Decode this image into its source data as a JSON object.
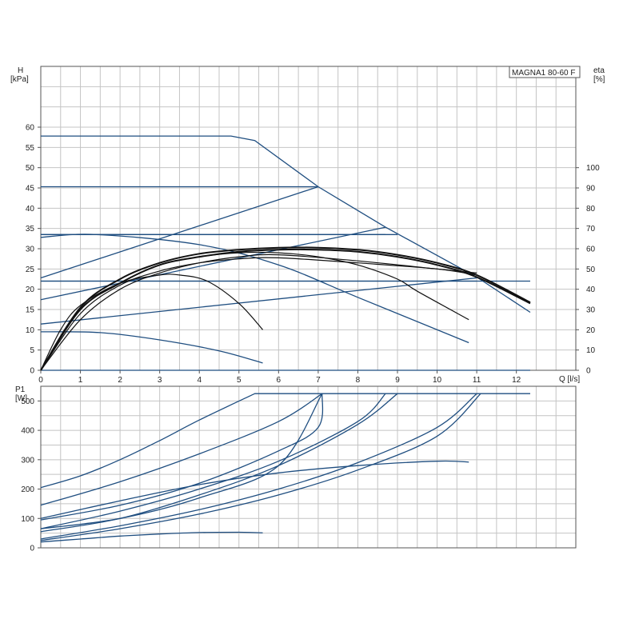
{
  "chart_data": [
    {
      "type": "line",
      "title": "MAGNA1 80-60 F",
      "xlabel": "Q [l/s]",
      "ylabel_left": "H\n[kPa]",
      "ylabel_left_lines": [
        "H",
        "[kPa]"
      ],
      "ylabel_right_lines": [
        "eta",
        "[%]"
      ],
      "xlim": [
        0,
        13.5
      ],
      "ylim": [
        0,
        75
      ],
      "y2lim": [
        0,
        150
      ],
      "grid": true,
      "legend": "top-right",
      "xticks": [
        0,
        1,
        2,
        3,
        4,
        5,
        6,
        7,
        8,
        9,
        10,
        11,
        12
      ],
      "yticks": [
        0,
        5,
        10,
        15,
        20,
        25,
        30,
        35,
        40,
        45,
        50,
        55,
        60
      ],
      "y2ticks": [
        0,
        10,
        20,
        30,
        40,
        50,
        60,
        70,
        80,
        90,
        100
      ],
      "head_series": [
        {
          "name": "max curve",
          "x": [
            0,
            4.8,
            5.4,
            7.0,
            8.7,
            11.0,
            12.35
          ],
          "y": [
            57.8,
            57.8,
            56.7,
            45.3,
            35.3,
            23.0,
            14.3
          ]
        },
        {
          "x": [
            0,
            7.0
          ],
          "y": [
            45.3,
            45.3
          ]
        },
        {
          "x": [
            0,
            8.7
          ],
          "y": [
            33.5,
            33.5
          ]
        },
        {
          "x": [
            0,
            9.0
          ],
          "y": [
            33.5,
            33.5
          ]
        },
        {
          "x": [
            0,
            11.0
          ],
          "y": [
            22.0,
            22.0
          ]
        },
        {
          "x": [
            0,
            12.35
          ],
          "y": [
            22.0,
            22.0
          ]
        },
        {
          "x": [
            0,
            7.0
          ],
          "y": [
            22.8,
            45.3
          ]
        },
        {
          "x": [
            0,
            8.7
          ],
          "y": [
            17.4,
            35.3
          ]
        },
        {
          "x": [
            0,
            11.0
          ],
          "y": [
            11.4,
            22.8
          ]
        },
        {
          "x": [
            0,
            1.4,
            4.0,
            6.0,
            8.0,
            10.8
          ],
          "y": [
            32.8,
            33.5,
            31.0,
            26.0,
            18.0,
            6.8
          ]
        },
        {
          "x": [
            0,
            1.5,
            3.0,
            4.5,
            5.6
          ],
          "y": [
            9.5,
            9.3,
            7.5,
            4.8,
            1.8
          ]
        },
        {
          "x": [
            0,
            12.35
          ],
          "y": [
            0,
            0
          ]
        }
      ],
      "eta_series": [
        {
          "x": [
            0,
            0.5,
            1,
            2,
            3,
            3.5,
            4.2,
            5,
            5.6
          ],
          "y": [
            0,
            20,
            32,
            43,
            47,
            47,
            44,
            33,
            20
          ]
        },
        {
          "x": [
            0,
            1,
            2,
            3,
            4,
            5,
            6,
            7,
            8,
            9,
            9.5,
            10.8
          ],
          "y": [
            0,
            30,
            43,
            52,
            56,
            58,
            58,
            56,
            52,
            45,
            39,
            25
          ]
        },
        {
          "x": [
            0,
            1,
            2,
            3,
            4,
            5,
            6,
            7,
            8,
            9,
            10,
            11,
            12.35
          ],
          "y": [
            0,
            30,
            43,
            52,
            56,
            58.5,
            59.5,
            59.5,
            58.5,
            56,
            52,
            46,
            33
          ]
        },
        {
          "x": [
            0,
            1,
            2,
            3,
            4,
            5,
            6,
            7,
            8,
            9,
            10,
            11,
            12.35
          ],
          "y": [
            0,
            31,
            45,
            53,
            57.5,
            59.5,
            60.5,
            60.5,
            59.5,
            57,
            53,
            47,
            33.5
          ]
        },
        {
          "x": [
            0,
            1,
            2,
            3,
            4,
            5,
            6,
            8,
            10,
            11
          ],
          "y": [
            0,
            28,
            42,
            49,
            53,
            55,
            55.5,
            53,
            50,
            47
          ]
        },
        {
          "x": [
            0,
            1,
            2,
            3,
            4,
            5,
            6,
            8,
            10,
            11
          ],
          "y": [
            0,
            25,
            40,
            48,
            53,
            56,
            57,
            54,
            50,
            48
          ]
        }
      ]
    },
    {
      "type": "line",
      "ylabel_lines": [
        "P1",
        "[W]"
      ],
      "xlim": [
        0,
        13.5
      ],
      "ylim": [
        0,
        550
      ],
      "yticks": [
        0,
        100,
        200,
        300,
        400,
        500
      ],
      "series": [
        {
          "x": [
            0,
            1,
            2,
            3,
            4,
            5.4,
            12.35
          ],
          "y": [
            205,
            245,
            300,
            365,
            435,
            525,
            525
          ]
        },
        {
          "x": [
            0,
            2,
            4,
            6,
            7.1
          ],
          "y": [
            145,
            225,
            320,
            430,
            525
          ]
        },
        {
          "x": [
            0,
            2,
            4,
            6,
            7,
            7.1
          ],
          "y": [
            95,
            145,
            220,
            330,
            410,
            525
          ]
        },
        {
          "x": [
            0,
            2,
            4,
            6,
            7.1
          ],
          "y": [
            65,
            100,
            170,
            280,
            525
          ]
        },
        {
          "x": [
            0,
            2,
            4,
            6,
            8,
            8.7
          ],
          "y": [
            65,
            125,
            200,
            295,
            430,
            525
          ]
        },
        {
          "x": [
            0,
            2,
            4,
            6,
            8,
            9
          ],
          "y": [
            55,
            100,
            180,
            280,
            420,
            525
          ]
        },
        {
          "x": [
            0,
            2,
            4,
            6,
            8,
            10,
            11
          ],
          "y": [
            30,
            75,
            130,
            200,
            290,
            410,
            525
          ]
        },
        {
          "x": [
            0,
            2,
            4,
            6,
            8,
            10,
            11.1
          ],
          "y": [
            25,
            65,
            115,
            180,
            265,
            380,
            525
          ]
        },
        {
          "x": [
            0,
            2,
            4,
            6,
            8,
            10,
            10.8
          ],
          "y": [
            100,
            160,
            215,
            255,
            280,
            295,
            292
          ]
        },
        {
          "x": [
            0,
            1,
            2,
            3,
            4,
            5,
            5.6
          ],
          "y": [
            20,
            30,
            40,
            47,
            52,
            53,
            51
          ]
        }
      ]
    }
  ]
}
